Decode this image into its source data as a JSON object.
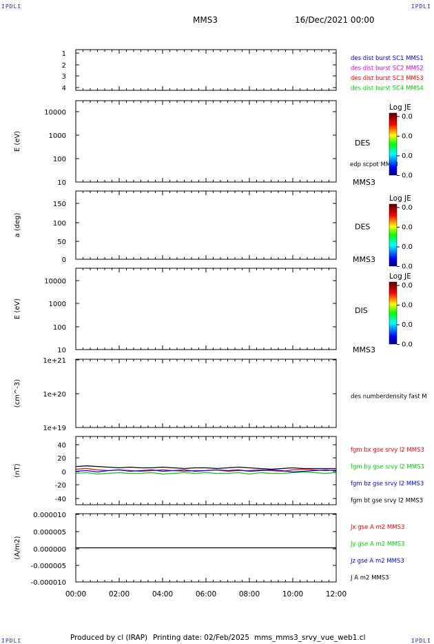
{
  "corner_label": "IPDLI",
  "header": {
    "spacecraft": "MMS3",
    "datetime": "16/Dec/2021 00:00"
  },
  "footer": {
    "produced_by": "Produced by cl (IRAP)",
    "printing_date": "Printing date: 02/Feb/2025",
    "filename": "mms_mms3_srvy_vue_web1.cl"
  },
  "time_axis": {
    "ticks": [
      "00:00",
      "02:00",
      "04:00",
      "06:00",
      "08:00",
      "10:00",
      "12:00"
    ]
  },
  "colors": {
    "blue": "#0000ff",
    "magenta": "#e000e0",
    "red": "#ff0000",
    "green": "#00cc00",
    "black": "#000000"
  },
  "chart_data": [
    {
      "type": "line",
      "ylabel": "",
      "ylim": [
        0.5,
        4.5
      ],
      "yticks": [
        "1",
        "2",
        "3",
        "4"
      ],
      "legend": [
        {
          "label": "des dist burst SC1 MMS1",
          "color": "#0000ff"
        },
        {
          "label": "des dist burst SC2 MMS2",
          "color": "#e000e0"
        },
        {
          "label": "des dist burst SC3 MMS3",
          "color": "#ff0000"
        },
        {
          "label": "des dist burst SC4 MMS4",
          "color": "#00cc00"
        }
      ],
      "series": []
    },
    {
      "type": "heatmap",
      "ylabel": "E (eV)",
      "scale": "log",
      "ylim": [
        10,
        20000
      ],
      "yticks": [
        "10000",
        "1000",
        "100",
        "10"
      ],
      "instrument_label": "DES",
      "spacecraft_label": "MMS3",
      "overlay_label": "edp scpot MMS3",
      "colorbar": {
        "title": "Log JE",
        "ticks": [
          "0.0",
          "0.0",
          "0.0",
          "0.0"
        ]
      }
    },
    {
      "type": "heatmap",
      "ylabel": "a (deg)",
      "ylim": [
        0,
        180
      ],
      "yticks": [
        "150",
        "100",
        "50",
        "0"
      ],
      "instrument_label": "DES",
      "spacecraft_label": "MMS3",
      "colorbar": {
        "title": "Log JE",
        "ticks": [
          "0.0",
          "0.0",
          "0.0",
          "0.0"
        ]
      }
    },
    {
      "type": "heatmap",
      "ylabel": "E (eV)",
      "scale": "log",
      "ylim": [
        10,
        20000
      ],
      "yticks": [
        "10000",
        "1000",
        "100",
        "10"
      ],
      "instrument_label": "DIS",
      "spacecraft_label": "MMS3",
      "colorbar": {
        "title": "Log JE",
        "ticks": [
          "0.0",
          "0.0",
          "0.0",
          "0.0"
        ]
      }
    },
    {
      "type": "line",
      "ylabel": "(cm^-3)",
      "scale": "log",
      "ylim": [
        1e+19,
        1e+21
      ],
      "yticks": [
        "1e+21",
        "1e+20",
        "1e+19"
      ],
      "legend": [
        {
          "label": "des numberdensity fast M",
          "color": "#000000"
        }
      ],
      "series": []
    },
    {
      "type": "line",
      "ylabel": "(nT)",
      "ylim": [
        -50,
        50
      ],
      "yticks": [
        "40",
        "20",
        "0",
        "-20",
        "-40"
      ],
      "x_range_hours": [
        0,
        12
      ],
      "legend": [
        {
          "label": "fgm bx gse srvy l2 MMS3",
          "color": "#ff0000"
        },
        {
          "label": "fgm by gse srvy l2 MMS3",
          "color": "#00cc00"
        },
        {
          "label": "fgm bz gse srvy l2 MMS3",
          "color": "#0000ff"
        },
        {
          "label": "fgm bt gse srvy l2 MMS3",
          "color": "#000000"
        }
      ],
      "series": [
        {
          "color": "#000000",
          "x": [
            0,
            0.5,
            1,
            1.5,
            2,
            2.5,
            3,
            3.5,
            4,
            4.5,
            5,
            5.5,
            6,
            6.5,
            7,
            7.5,
            8,
            8.5,
            9,
            9.5,
            10,
            10.5,
            11,
            11.5,
            12
          ],
          "y": [
            6,
            7,
            6,
            5,
            4,
            5,
            4,
            4,
            5,
            4,
            3,
            4,
            4,
            3,
            4,
            5,
            4,
            3,
            2,
            3,
            4,
            3,
            3,
            3,
            3
          ]
        },
        {
          "color": "#ff0000",
          "x": [
            0,
            0.5,
            1,
            1.5,
            2,
            2.5,
            3,
            3.5,
            4,
            4.5,
            5,
            5.5,
            6,
            6.5,
            7,
            7.5,
            8,
            8.5,
            9,
            9.5,
            10,
            10.5,
            11,
            11.5,
            12
          ],
          "y": [
            2,
            3,
            1,
            0,
            1,
            0,
            -1,
            0,
            1,
            0,
            -1,
            0,
            0,
            1,
            -1,
            0,
            0,
            1,
            0,
            -1,
            1,
            2,
            1,
            0,
            1
          ]
        },
        {
          "color": "#00cc00",
          "x": [
            0,
            0.5,
            1,
            1.5,
            2,
            2.5,
            3,
            3.5,
            4,
            4.5,
            5,
            5.5,
            6,
            6.5,
            7,
            7.5,
            8,
            8.5,
            9,
            9.5,
            10,
            10.5,
            11,
            11.5,
            12
          ],
          "y": [
            -4,
            -3,
            -5,
            -4,
            -3,
            -4,
            -4,
            -3,
            -5,
            -4,
            -3,
            -4,
            -3,
            -4,
            -4,
            -3,
            -5,
            -3,
            -4,
            -4,
            -3,
            -2,
            -3,
            -4,
            -3
          ]
        },
        {
          "color": "#0000ff",
          "x": [
            0,
            0.5,
            1,
            1.5,
            2,
            2.5,
            3,
            3.5,
            4,
            4.5,
            5,
            5.5,
            6,
            6.5,
            7,
            7.5,
            8,
            8.5,
            9,
            9.5,
            10,
            10.5,
            11,
            11.5,
            12
          ],
          "y": [
            -1,
            0,
            -2,
            0,
            1,
            -1,
            0,
            1,
            -1,
            0,
            1,
            -1,
            0,
            1,
            0,
            1,
            -1,
            0,
            1,
            0,
            -2,
            -1,
            0,
            1,
            0
          ]
        }
      ]
    },
    {
      "type": "line",
      "ylabel": "(A/m2)",
      "ylim": [
        -1e-05,
        1e-05
      ],
      "yticks": [
        "0.000010",
        "0.000005",
        "0.000000",
        "-0.000005",
        "-0.000010"
      ],
      "x_range_hours": [
        0,
        12
      ],
      "legend": [
        {
          "label": "Jx gse A m2 MMS3",
          "color": "#ff0000"
        },
        {
          "label": "Jy gse A m2 MMS3",
          "color": "#00cc00"
        },
        {
          "label": "Jz gse A m2 MMS3",
          "color": "#0000ff"
        },
        {
          "label": "J A m2 MMS3",
          "color": "#000000"
        }
      ],
      "series": [
        {
          "color": "#000000",
          "x": [
            0,
            12
          ],
          "y": [
            0,
            0
          ]
        }
      ]
    }
  ]
}
